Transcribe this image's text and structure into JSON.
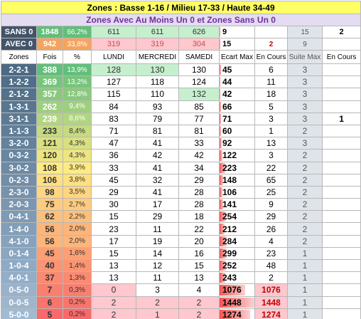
{
  "title": "Zones : Basse 1-16 / Milieu 17-33 / Haute 34-49",
  "subtitle": "Zones Avec Au Moins Un 0 et Zones Sans  Un 0",
  "summary": [
    {
      "zone": "SANS 0",
      "fois": 1848,
      "pct": "66,2%",
      "lundi": 611,
      "mercredi": 611,
      "samedi": 626,
      "ecart_max": 9,
      "suite_max": 15,
      "en_cours_suite": 2
    },
    {
      "zone": "AVEC 0",
      "fois": 942,
      "pct": "33,8%",
      "lundi": 319,
      "mercredi": 319,
      "samedi": 304,
      "ecart_max": 15,
      "en_cours": 2,
      "suite_max": 9
    }
  ],
  "header": [
    "Zones",
    "Fois",
    "%",
    "LUNDI",
    "MERCREDI",
    "SAMEDI",
    "Ecart Max",
    "En Cours",
    "Suite Max",
    "En Cours"
  ],
  "rows": [
    {
      "zone": "2-2-1",
      "fois": 388,
      "pct": "13,9%",
      "lundi": 128,
      "mercredi": 130,
      "samedi": 130,
      "ecart_max": 45,
      "en_cours": 6,
      "suite_max": 3
    },
    {
      "zone": "1-2-2",
      "fois": 369,
      "pct": "13,2%",
      "lundi": 127,
      "mercredi": 118,
      "samedi": 124,
      "ecart_max": 44,
      "en_cours": 11,
      "suite_max": 3
    },
    {
      "zone": "2-1-2",
      "fois": 357,
      "pct": "12,8%",
      "lundi": 115,
      "mercredi": 110,
      "samedi": 132,
      "ecart_max": 42,
      "en_cours": 18,
      "suite_max": 3
    },
    {
      "zone": "1-3-1",
      "fois": 262,
      "pct": "9,4%",
      "lundi": 84,
      "mercredi": 93,
      "samedi": 85,
      "ecart_max": 66,
      "en_cours": 5,
      "suite_max": 3
    },
    {
      "zone": "3-1-1",
      "fois": 239,
      "pct": "8,6%",
      "lundi": 83,
      "mercredi": 79,
      "samedi": 77,
      "ecart_max": 71,
      "en_cours": 3,
      "suite_max": 3,
      "en_cours_suite": 1
    },
    {
      "zone": "1-1-3",
      "fois": 233,
      "pct": "8,4%",
      "lundi": 71,
      "mercredi": 81,
      "samedi": 81,
      "ecart_max": 60,
      "en_cours": 1,
      "suite_max": 2
    },
    {
      "zone": "3-2-0",
      "fois": 121,
      "pct": "4,3%",
      "lundi": 47,
      "mercredi": 41,
      "samedi": 33,
      "ecart_max": 92,
      "en_cours": 13,
      "suite_max": 3
    },
    {
      "zone": "0-3-2",
      "fois": 120,
      "pct": "4,3%",
      "lundi": 36,
      "mercredi": 42,
      "samedi": 42,
      "ecart_max": 122,
      "en_cours": 3,
      "suite_max": 2
    },
    {
      "zone": "3-0-2",
      "fois": 108,
      "pct": "3,9%",
      "lundi": 33,
      "mercredi": 41,
      "samedi": 34,
      "ecart_max": 223,
      "en_cours": 22,
      "suite_max": 2
    },
    {
      "zone": "0-2-3",
      "fois": 106,
      "pct": "3,8%",
      "lundi": 45,
      "mercredi": 32,
      "samedi": 29,
      "ecart_max": 148,
      "en_cours": 65,
      "suite_max": 2
    },
    {
      "zone": "2-3-0",
      "fois": 98,
      "pct": "3,5%",
      "lundi": 29,
      "mercredi": 41,
      "samedi": 28,
      "ecart_max": 106,
      "en_cours": 25,
      "suite_max": 2
    },
    {
      "zone": "2-0-3",
      "fois": 75,
      "pct": "2,7%",
      "lundi": 30,
      "mercredi": 17,
      "samedi": 28,
      "ecart_max": 141,
      "en_cours": 9,
      "suite_max": 2
    },
    {
      "zone": "0-4-1",
      "fois": 62,
      "pct": "2,2%",
      "lundi": 15,
      "mercredi": 29,
      "samedi": 18,
      "ecart_max": 254,
      "en_cours": 29,
      "suite_max": 2
    },
    {
      "zone": "1-4-0",
      "fois": 56,
      "pct": "2,0%",
      "lundi": 23,
      "mercredi": 11,
      "samedi": 22,
      "ecart_max": 212,
      "en_cours": 26,
      "suite_max": 2
    },
    {
      "zone": "4-1-0",
      "fois": 56,
      "pct": "2,0%",
      "lundi": 17,
      "mercredi": 19,
      "samedi": 20,
      "ecart_max": 284,
      "en_cours": 4,
      "suite_max": 2
    },
    {
      "zone": "0-1-4",
      "fois": 45,
      "pct": "1,6%",
      "lundi": 15,
      "mercredi": 14,
      "samedi": 16,
      "ecart_max": 299,
      "en_cours": 23,
      "suite_max": 1
    },
    {
      "zone": "1-0-4",
      "fois": 40,
      "pct": "1,4%",
      "lundi": 13,
      "mercredi": 12,
      "samedi": 15,
      "ecart_max": 252,
      "en_cours": 48,
      "suite_max": 1
    },
    {
      "zone": "4-0-1",
      "fois": 37,
      "pct": "1,3%",
      "lundi": 13,
      "mercredi": 11,
      "samedi": 13,
      "ecart_max": 243,
      "en_cours": 2,
      "suite_max": 1
    },
    {
      "zone": "0-5-0",
      "fois": 7,
      "pct": "0,3%",
      "lundi": 0,
      "mercredi": 3,
      "samedi": 4,
      "ecart_max": 1076,
      "en_cours": 1076,
      "suite_max": 1
    },
    {
      "zone": "0-0-5",
      "fois": 6,
      "pct": "0,2%",
      "lundi": 2,
      "mercredi": 2,
      "samedi": 2,
      "ecart_max": 1448,
      "en_cours": 1448,
      "suite_max": 1
    },
    {
      "zone": "5-0-0",
      "fois": 5,
      "pct": "0,2%",
      "lundi": 2,
      "mercredi": 1,
      "samedi": 2,
      "ecart_max": 1274,
      "en_cours": 1274,
      "suite_max": 1
    }
  ]
}
